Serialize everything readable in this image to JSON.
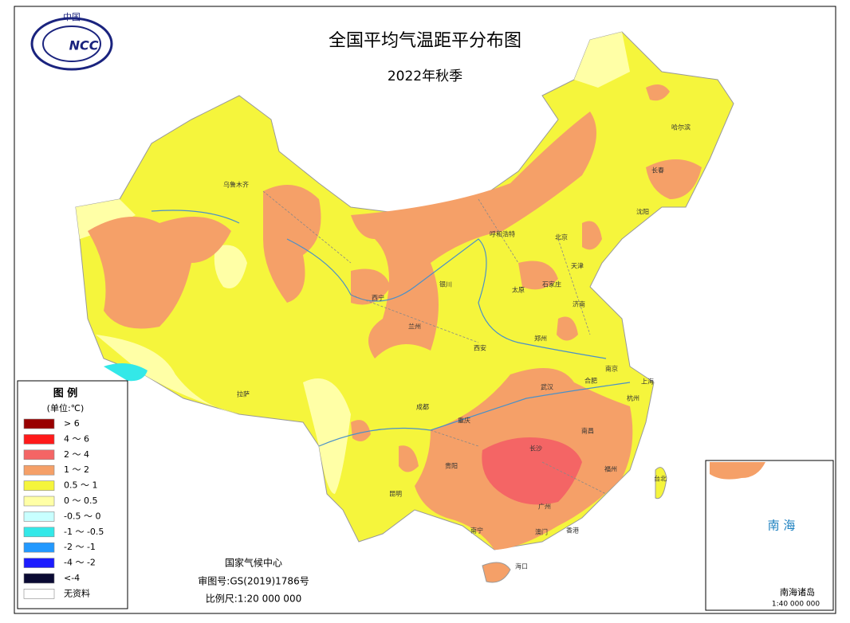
{
  "header": {
    "title": "全国平均气温距平分布图",
    "subtitle": "2022年秋季",
    "logo_top": "中国",
    "logo_text": "NCC"
  },
  "legend": {
    "title": "图 例",
    "unit": "(单位:℃)",
    "items": [
      {
        "label": "> 6",
        "color": "#990000"
      },
      {
        "label": "4 ～ 6",
        "color": "#ff1a1a"
      },
      {
        "label": "2 ～ 4",
        "color": "#f46565"
      },
      {
        "label": "1 ～ 2",
        "color": "#f5a068"
      },
      {
        "label": "0.5 ～ 1",
        "color": "#f5f53c"
      },
      {
        "label": "0 ～ 0.5",
        "color": "#ffffa6"
      },
      {
        "label": "-0.5 ～ 0",
        "color": "#c8ffff"
      },
      {
        "label": "-1 ～ -0.5",
        "color": "#33e8e8"
      },
      {
        "label": "-2 ～ -1",
        "color": "#2299ff"
      },
      {
        "label": "-4 ～ -2",
        "color": "#1c1cff"
      },
      {
        "label": "<-4",
        "color": "#0a0a33"
      },
      {
        "label": "无资料",
        "color": "#ffffff"
      }
    ]
  },
  "credits": {
    "agency": "国家气候中心",
    "approval": "审图号:GS(2019)1786号",
    "scale": "比例尺:1:20 000 000"
  },
  "inset": {
    "title": "南海诸岛",
    "scale": "1:40 000 000",
    "sea": "南 海"
  },
  "cities": [
    "乌鲁木齐",
    "拉萨",
    "西宁",
    "银川",
    "兰州",
    "呼和浩特",
    "北京",
    "天津",
    "石家庄",
    "太原",
    "济南",
    "郑州",
    "西安",
    "成都",
    "重庆",
    "武汉",
    "合肥",
    "南京",
    "上海",
    "杭州",
    "南昌",
    "长沙",
    "贵阳",
    "昆明",
    "南宁",
    "广州",
    "澳门",
    "香港",
    "海口",
    "台北",
    "福州",
    "沈阳",
    "长春",
    "哈尔滨"
  ]
}
